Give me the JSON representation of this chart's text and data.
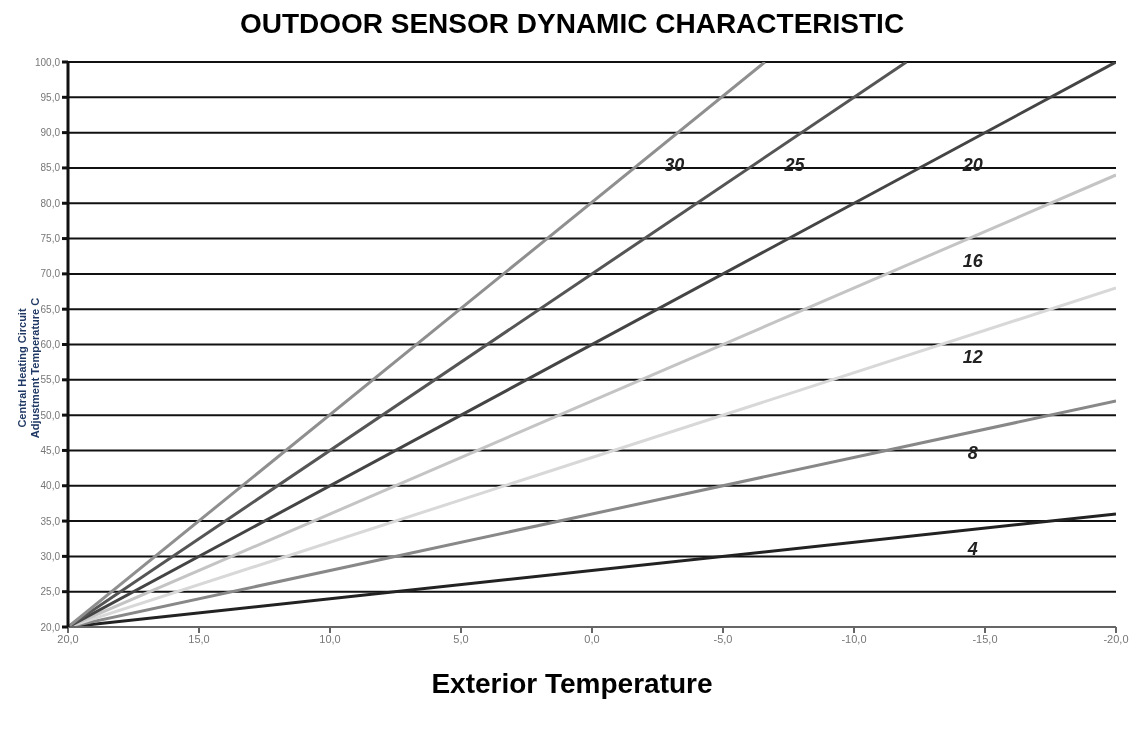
{
  "chart_data": {
    "type": "line",
    "title": "OUTDOOR SENSOR DYNAMIC CHARACTERISTIC",
    "xlabel": "Exterior Temperature",
    "ylabel": "Central Heating Circuit\nAdjustment Temperature C",
    "x": [
      20,
      -20
    ],
    "series": [
      {
        "name": "4",
        "color": "#222222",
        "values": [
          20,
          36
        ]
      },
      {
        "name": "8",
        "color": "#888888",
        "values": [
          20,
          52
        ]
      },
      {
        "name": "12",
        "color": "#d8d8d8",
        "values": [
          20,
          68
        ]
      },
      {
        "name": "16",
        "color": "#c4c4c4",
        "values": [
          20,
          84
        ]
      },
      {
        "name": "20",
        "color": "#444444",
        "values": [
          20,
          100
        ]
      },
      {
        "name": "25",
        "color": "#555555",
        "x": [
          20,
          -12
        ],
        "values": [
          20,
          100
        ]
      },
      {
        "name": "30",
        "color": "#8f8f8f",
        "x": [
          20,
          -6.6
        ],
        "values": [
          20,
          100
        ]
      }
    ],
    "xlim": [
      20,
      -20
    ],
    "xticks": [
      {
        "value": 20,
        "label": "20,0"
      },
      {
        "value": 15,
        "label": "15,0"
      },
      {
        "value": 10,
        "label": "10,0"
      },
      {
        "value": 5,
        "label": "5,0"
      },
      {
        "value": 0,
        "label": "0,0"
      },
      {
        "value": -5,
        "label": "-5,0"
      },
      {
        "value": -10,
        "label": "-10,0"
      },
      {
        "value": -15,
        "label": "-15,0"
      },
      {
        "value": -20,
        "label": "-20,0"
      }
    ],
    "ylim": [
      20,
      100
    ],
    "yticks": [
      {
        "value": 20,
        "label": "20,0"
      },
      {
        "value": 25,
        "label": "25,0"
      },
      {
        "value": 30,
        "label": "30,0"
      },
      {
        "value": 35,
        "label": "35,0"
      },
      {
        "value": 40,
        "label": "40,0"
      },
      {
        "value": 45,
        "label": "45,0"
      },
      {
        "value": 50,
        "label": "50,0"
      },
      {
        "value": 55,
        "label": "55,0"
      },
      {
        "value": 60,
        "label": "60,0"
      },
      {
        "value": 65,
        "label": "65,0"
      },
      {
        "value": 70,
        "label": "70,0"
      },
      {
        "value": 75,
        "label": "75,0"
      },
      {
        "value": 80,
        "label": "80,0"
      },
      {
        "value": 85,
        "label": "85,0"
      },
      {
        "value": 90,
        "label": "90,0"
      },
      {
        "value": 95,
        "label": "95,0"
      },
      {
        "value": 100,
        "label": "100,0"
      }
    ],
    "grid": "y",
    "legend": false,
    "marker": "none",
    "line_style": "solid"
  }
}
